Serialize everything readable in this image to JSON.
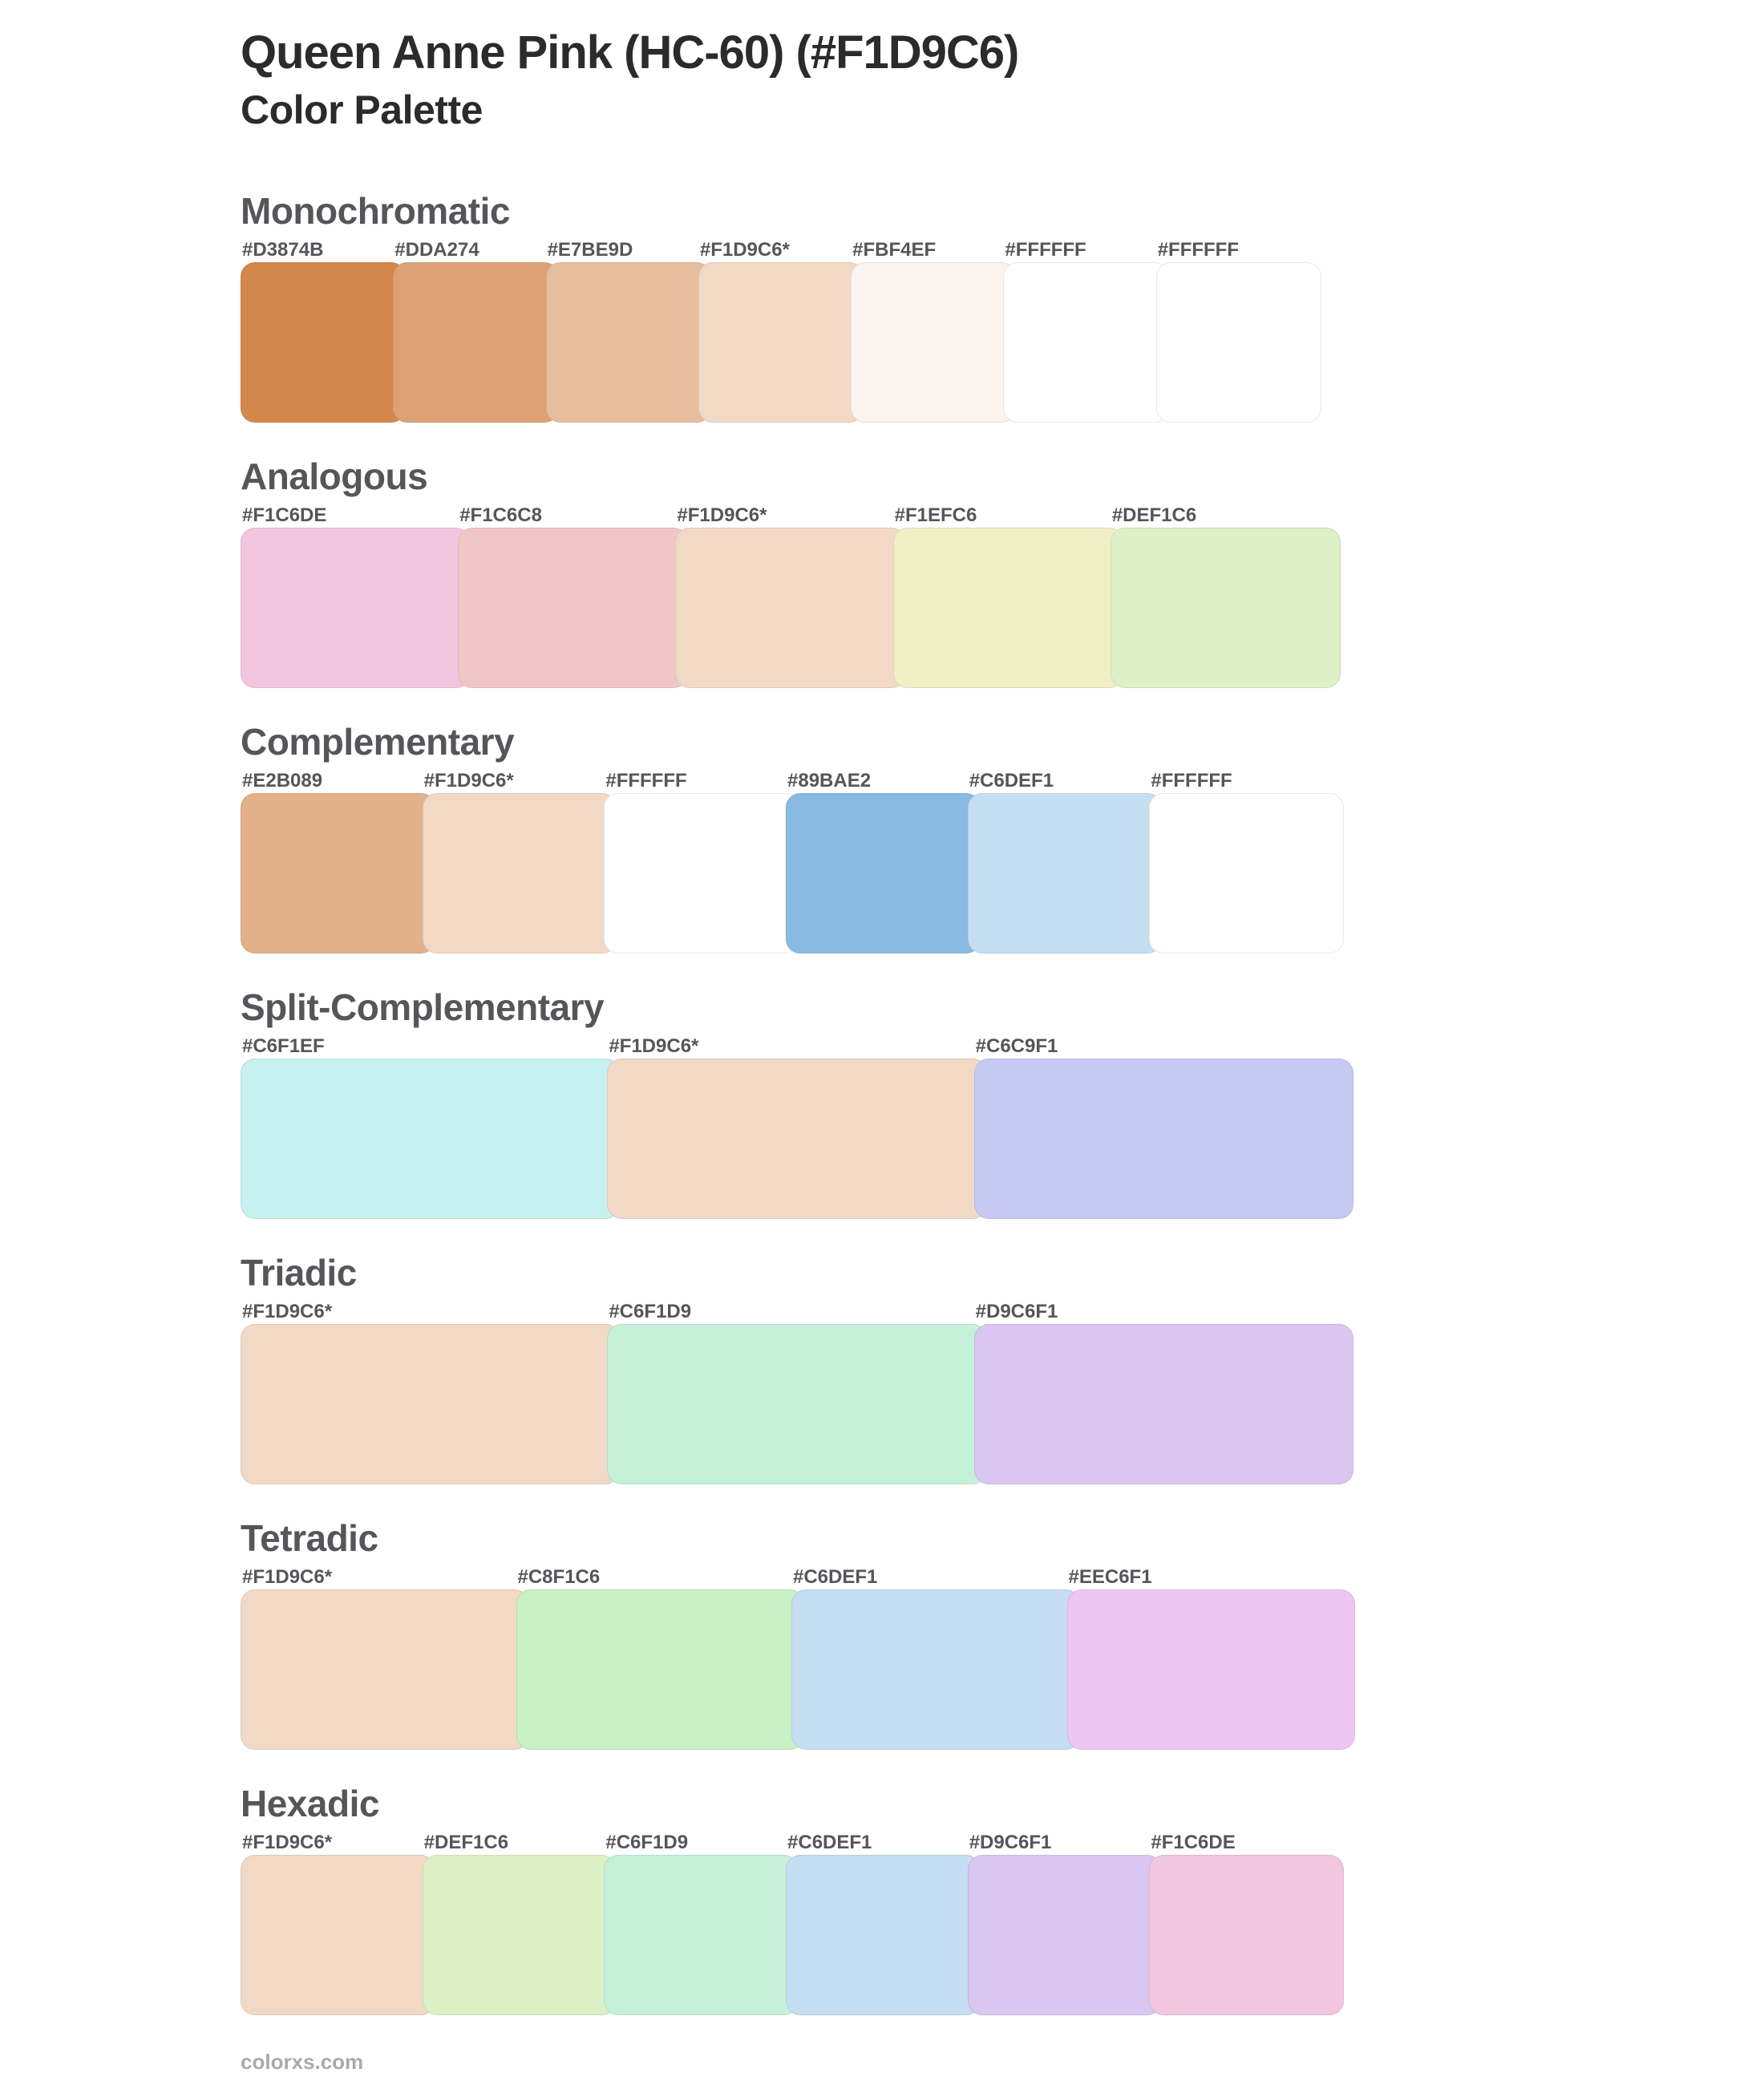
{
  "header": {
    "title": "Queen Anne Pink (HC-60) (#F1D9C6)",
    "subtitle": "Color Palette"
  },
  "sections": [
    {
      "name": "Monochromatic",
      "swatches": [
        {
          "label": "#D3874B",
          "color": "#D3874B"
        },
        {
          "label": "#DDA274",
          "color": "#DDA274"
        },
        {
          "label": "#E7BE9D",
          "color": "#E7BE9D"
        },
        {
          "label": "#F1D9C6*",
          "color": "#F1D9C6"
        },
        {
          "label": "#FBF4EF",
          "color": "#FBF4EF"
        },
        {
          "label": "#FFFFFF",
          "color": "#FFFFFF"
        },
        {
          "label": "#FFFFFF",
          "color": "#FFFFFF"
        }
      ]
    },
    {
      "name": "Analogous",
      "swatches": [
        {
          "label": "#F1C6DE",
          "color": "#F1C6DE"
        },
        {
          "label": "#F1C6C8",
          "color": "#F1C6C8"
        },
        {
          "label": "#F1D9C6*",
          "color": "#F1D9C6"
        },
        {
          "label": "#F1EFC6",
          "color": "#F1EFC6"
        },
        {
          "label": "#DEF1C6",
          "color": "#DEF1C6"
        }
      ]
    },
    {
      "name": "Complementary",
      "swatches": [
        {
          "label": "#E2B089",
          "color": "#E2B089"
        },
        {
          "label": "#F1D9C6*",
          "color": "#F1D9C6"
        },
        {
          "label": "#FFFFFF",
          "color": "#FFFFFF"
        },
        {
          "label": "#89BAE2",
          "color": "#89BAE2"
        },
        {
          "label": "#C6DEF1",
          "color": "#C6DEF1"
        },
        {
          "label": "#FFFFFF",
          "color": "#FFFFFF"
        }
      ]
    },
    {
      "name": "Split-Complementary",
      "swatches": [
        {
          "label": "#C6F1EF",
          "color": "#C6F1EF"
        },
        {
          "label": "#F1D9C6*",
          "color": "#F1D9C6"
        },
        {
          "label": "#C6C9F1",
          "color": "#C6C9F1"
        }
      ]
    },
    {
      "name": "Triadic",
      "swatches": [
        {
          "label": "#F1D9C6*",
          "color": "#F1D9C6"
        },
        {
          "label": "#C6F1D9",
          "color": "#C6F1D9"
        },
        {
          "label": "#D9C6F1",
          "color": "#D9C6F1"
        }
      ]
    },
    {
      "name": "Tetradic",
      "swatches": [
        {
          "label": "#F1D9C6*",
          "color": "#F1D9C6"
        },
        {
          "label": "#C8F1C6",
          "color": "#C8F1C6"
        },
        {
          "label": "#C6DEF1",
          "color": "#C6DEF1"
        },
        {
          "label": "#EEC6F1",
          "color": "#EEC6F1"
        }
      ]
    },
    {
      "name": "Hexadic",
      "swatches": [
        {
          "label": "#F1D9C6*",
          "color": "#F1D9C6"
        },
        {
          "label": "#DEF1C6",
          "color": "#DEF1C6"
        },
        {
          "label": "#C6F1D9",
          "color": "#C6F1D9"
        },
        {
          "label": "#C6DEF1",
          "color": "#C6DEF1"
        },
        {
          "label": "#D9C6F1",
          "color": "#D9C6F1"
        },
        {
          "label": "#F1C6DE",
          "color": "#F1C6DE"
        }
      ]
    }
  ],
  "footer": {
    "site": "colorxs.com"
  }
}
